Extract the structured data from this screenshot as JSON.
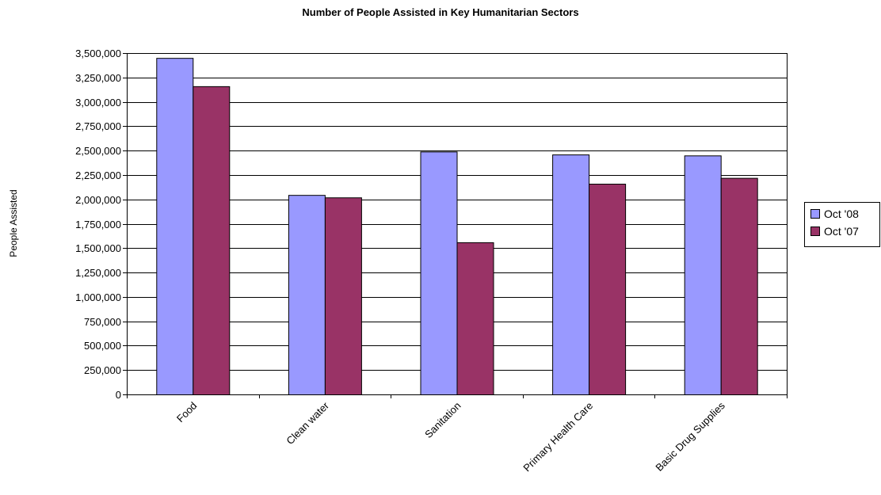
{
  "chart_data": {
    "type": "bar",
    "title": "Number of People Assisted in Key Humanitarian Sectors",
    "xlabel": "",
    "ylabel": "People Assisted",
    "categories": [
      "Food",
      "Clean water",
      "Sanitation",
      "Primary Health Care",
      "Basic Drug Supplies"
    ],
    "series": [
      {
        "name": "Oct '08",
        "color": "#9999ff",
        "values": [
          3450000,
          2045000,
          2490000,
          2460000,
          2450000
        ]
      },
      {
        "name": "Oct '07",
        "color": "#993366",
        "values": [
          3160000,
          2020000,
          1560000,
          2160000,
          2220000
        ]
      }
    ],
    "ylim": [
      0,
      3500000
    ],
    "ytick_step": 250000,
    "yticks": [
      "0",
      "250,000",
      "500,000",
      "750,000",
      "1,000,000",
      "1,250,000",
      "1,500,000",
      "1,750,000",
      "2,000,000",
      "2,250,000",
      "2,500,000",
      "2,750,000",
      "3,000,000",
      "3,250,000",
      "3,500,000"
    ],
    "grid": true,
    "legend_position": "right"
  }
}
